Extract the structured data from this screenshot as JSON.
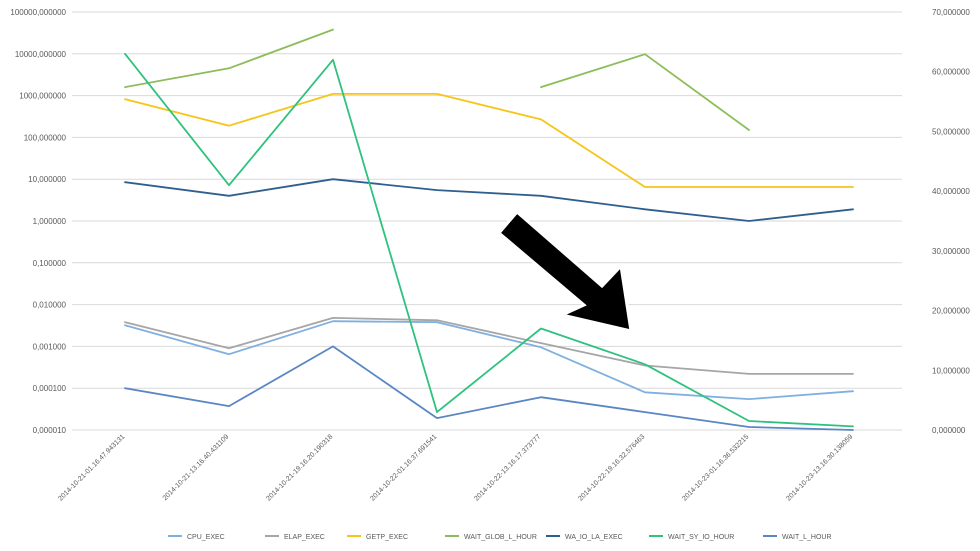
{
  "chart_data": {
    "type": "line",
    "title": "",
    "xlabel": "",
    "ylabel": "",
    "x": [
      "2014-10-21-01.16.47.943131",
      "2014-10-21-13.16.40.431109",
      "2014-10-21-19.16.20.190318",
      "2014-10-22-01.16.37.691541",
      "2014-10-22-13.16.17.373777",
      "2014-10-22-19.16.32.576463",
      "2014-10-23-01.16.36.532215",
      "2014-10-23-13.16.30.138059"
    ],
    "y_left": {
      "scale": "log",
      "ticks": [
        "0,000010",
        "0,000100",
        "0,001000",
        "0,010000",
        "0,100000",
        "1,000000",
        "10,000000",
        "100,000000",
        "1000,000000",
        "10000,000000",
        "100000,000000"
      ],
      "ylim": [
        1e-05,
        100000
      ]
    },
    "y_right": {
      "scale": "linear",
      "ticks": [
        "0,000000",
        "10,000000",
        "20,000000",
        "30,000000",
        "40,000000",
        "50,000000",
        "60,000000",
        "70,000000"
      ],
      "ylim": [
        0,
        70
      ]
    },
    "grid": true,
    "legend_position": "bottom",
    "series": [
      {
        "name": "CPU_EXEC",
        "color": "#7fb0e0",
        "axis": "left",
        "values": [
          0.0032,
          0.00065,
          0.004,
          0.0038,
          0.00095,
          8e-05,
          5.5e-05,
          8.5e-05
        ]
      },
      {
        "name": "ELAP_EXEC",
        "color": "#a6a6a6",
        "axis": "left",
        "values": [
          0.0038,
          0.0009,
          0.0048,
          0.0042,
          0.0012,
          0.00035,
          0.00022,
          0.00022
        ]
      },
      {
        "name": "GETP_EXEC",
        "color": "#f5c518",
        "axis": "left",
        "values": [
          820,
          190,
          1100,
          1100,
          270,
          6.5,
          6.5,
          6.5
        ]
      },
      {
        "name": "WAIT_GLOB_L_HOUR",
        "color": "#8cbd5a",
        "axis": "left",
        "values": [
          1600,
          4500,
          38000,
          null,
          1600,
          9800,
          150,
          null
        ]
      },
      {
        "name": "WA_IO_LA_EXEC",
        "color": "#2f5f8f",
        "axis": "left",
        "values": [
          8.5,
          4.0,
          10.0,
          5.5,
          4.0,
          1.9,
          1.0,
          1.9
        ]
      },
      {
        "name": "WAIT_SY_IO_HOUR",
        "color": "#2ec27e",
        "axis": "right",
        "values": [
          63,
          41,
          62,
          3,
          17,
          11,
          1.5,
          0.6
        ]
      },
      {
        "name": "WAIT_L_HOUR",
        "color": "#5b86c4",
        "axis": "right",
        "values": [
          7,
          4,
          14,
          2,
          5.5,
          3,
          0.5,
          0
        ]
      }
    ],
    "annotation": "arrow"
  }
}
